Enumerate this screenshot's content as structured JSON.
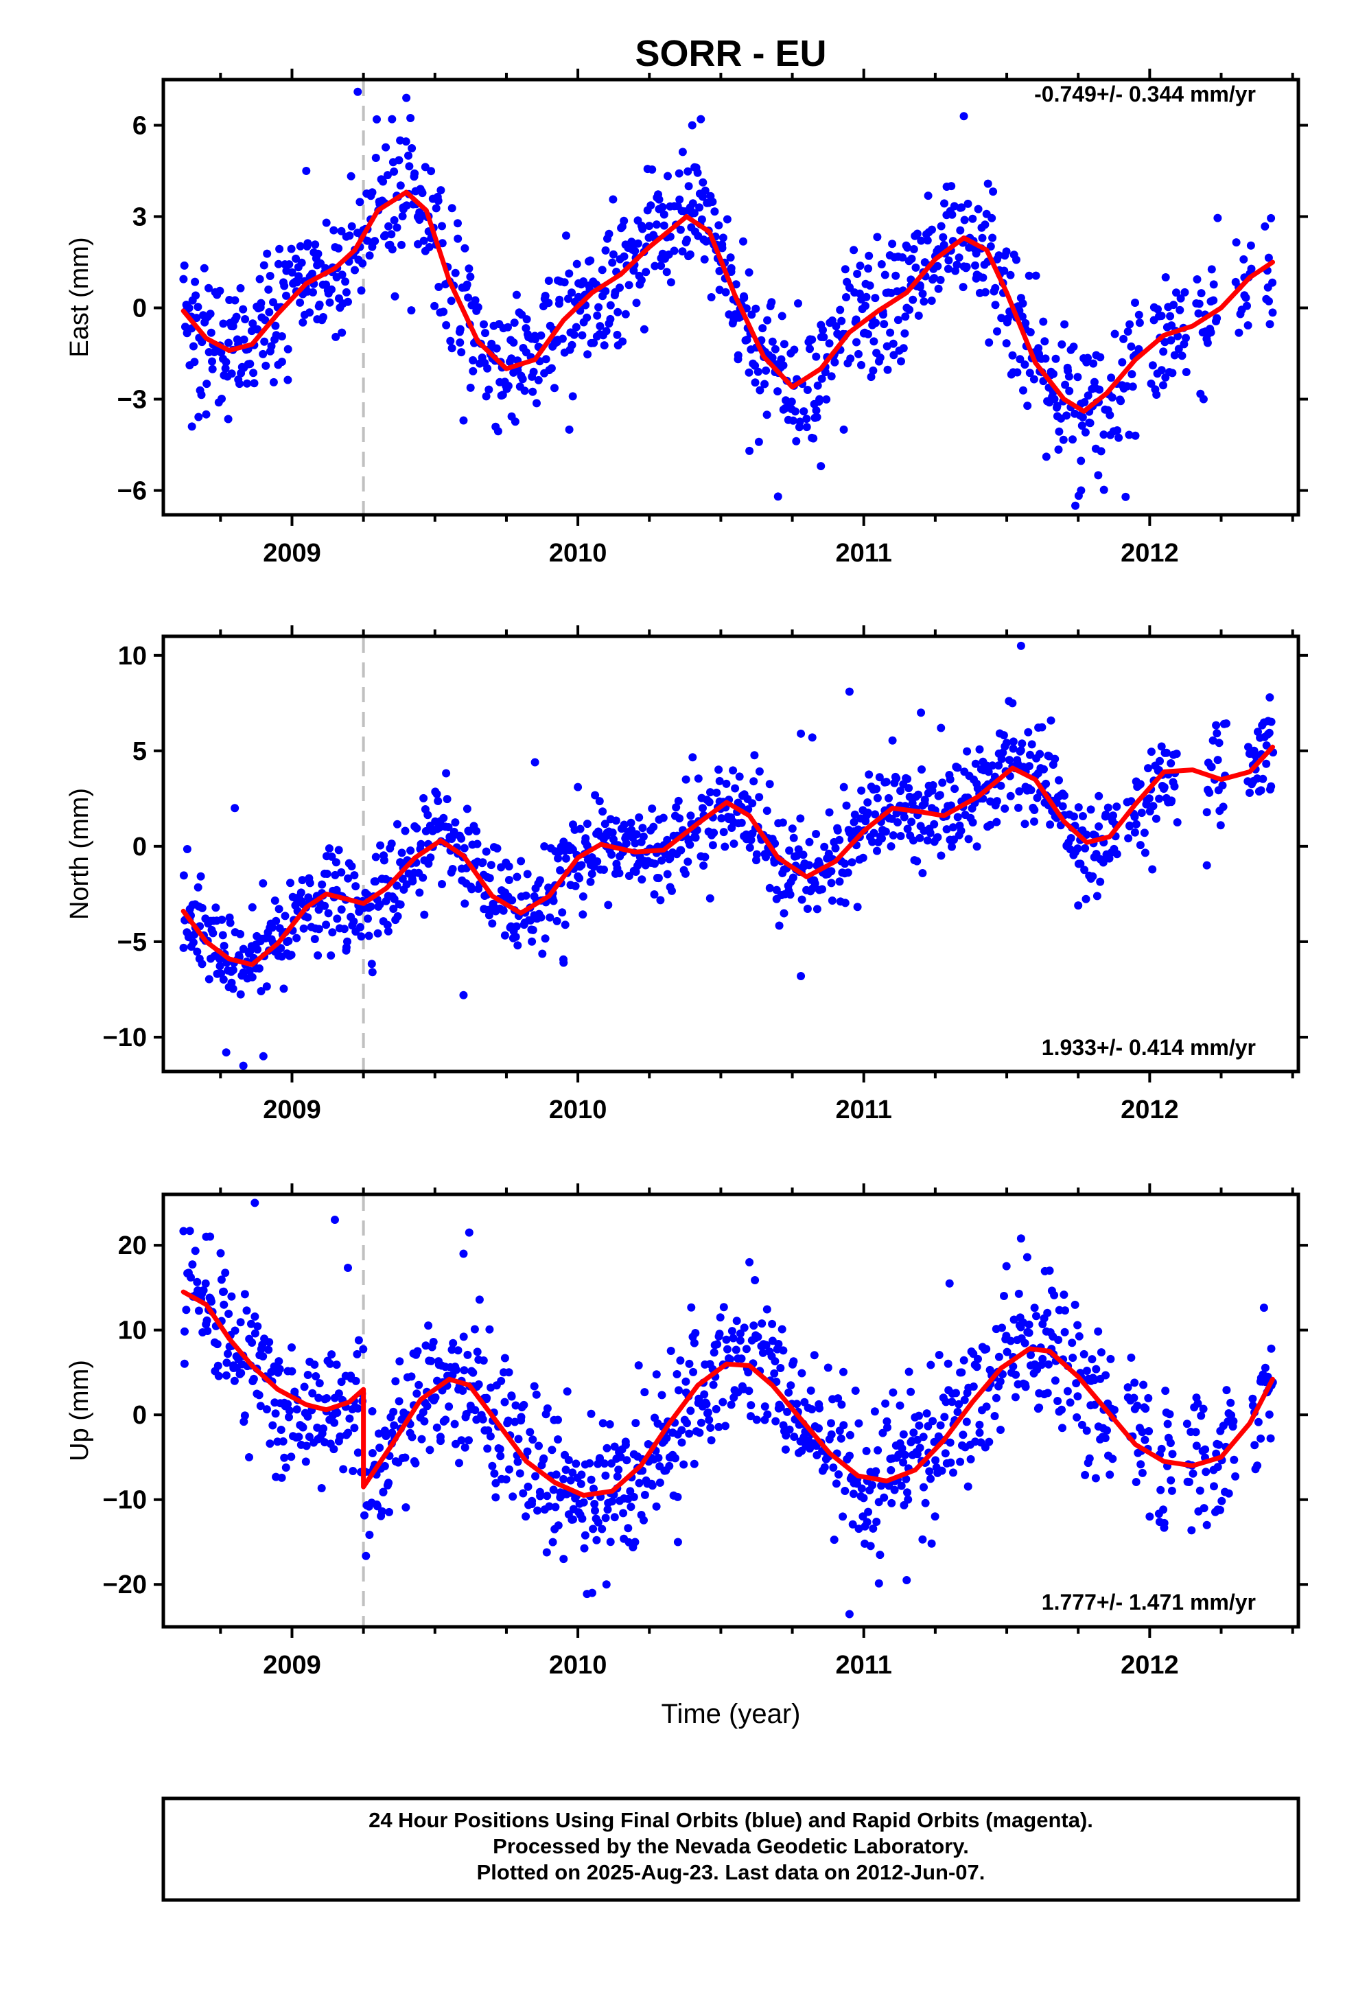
{
  "title": "SORR - EU",
  "xlabel": "Time (year)",
  "footer": {
    "line1": "24 Hour Positions Using Final Orbits (blue) and Rapid Orbits (magenta).",
    "line2": "Processed by the Nevada Geodetic Laboratory.",
    "line3": "Plotted on 2025-Aug-23. Last data on 2012-Jun-07."
  },
  "colors": {
    "points": "#0000ff",
    "fit": "#ff0000",
    "break": "#c0c0c0",
    "frame": "#000000"
  },
  "chart_data": [
    {
      "type": "scatter",
      "name": "east",
      "ylabel": "East (mm)",
      "rate_label": "-0.749+/- 0.344 mm/yr",
      "xlim": [
        2008.55,
        2012.52
      ],
      "ylim": [
        -6.8,
        7.5
      ],
      "yticks": [
        6,
        3,
        0,
        -3,
        -6
      ],
      "yticks_minor": [],
      "xticks": [
        2009,
        2010,
        2011,
        2012
      ],
      "break_line": 2009.25,
      "fit_curve": [
        [
          2008.62,
          -0.1
        ],
        [
          2008.7,
          -1.0
        ],
        [
          2008.78,
          -1.4
        ],
        [
          2008.86,
          -1.2
        ],
        [
          2008.95,
          -0.2
        ],
        [
          2009.05,
          0.8
        ],
        [
          2009.15,
          1.3
        ],
        [
          2009.22,
          1.9
        ],
        [
          2009.3,
          3.2
        ],
        [
          2009.4,
          3.8
        ],
        [
          2009.47,
          3.2
        ],
        [
          2009.55,
          0.9
        ],
        [
          2009.65,
          -1.1
        ],
        [
          2009.75,
          -2.0
        ],
        [
          2009.85,
          -1.7
        ],
        [
          2009.95,
          -0.4
        ],
        [
          2010.05,
          0.5
        ],
        [
          2010.15,
          1.1
        ],
        [
          2010.25,
          2.0
        ],
        [
          2010.38,
          3.0
        ],
        [
          2010.46,
          2.5
        ],
        [
          2010.55,
          0.4
        ],
        [
          2010.65,
          -1.6
        ],
        [
          2010.75,
          -2.6
        ],
        [
          2010.85,
          -2.0
        ],
        [
          2010.95,
          -0.8
        ],
        [
          2011.05,
          -0.1
        ],
        [
          2011.15,
          0.5
        ],
        [
          2011.25,
          1.6
        ],
        [
          2011.35,
          2.3
        ],
        [
          2011.43,
          1.9
        ],
        [
          2011.5,
          0.5
        ],
        [
          2011.6,
          -1.8
        ],
        [
          2011.7,
          -3.0
        ],
        [
          2011.77,
          -3.4
        ],
        [
          2011.85,
          -2.8
        ],
        [
          2011.95,
          -1.7
        ],
        [
          2012.05,
          -0.9
        ],
        [
          2012.15,
          -0.6
        ],
        [
          2012.25,
          0.0
        ],
        [
          2012.35,
          1.0
        ],
        [
          2012.43,
          1.5
        ]
      ],
      "point_spread": 1.1,
      "point_gaps": [
        [
          2008.55,
          2008.62
        ],
        [
          2011.97,
          2012.0
        ],
        [
          2012.13,
          2012.16
        ],
        [
          2012.24,
          2012.3
        ],
        [
          2012.36,
          2012.4
        ]
      ],
      "point_outliers": [
        [
          2009.23,
          7.1
        ],
        [
          2009.4,
          6.9
        ],
        [
          2009.35,
          6.2
        ],
        [
          2010.4,
          6.0
        ],
        [
          2010.43,
          6.2
        ],
        [
          2011.35,
          6.3
        ],
        [
          2009.05,
          4.5
        ],
        [
          2010.7,
          -6.2
        ],
        [
          2010.85,
          -5.2
        ],
        [
          2011.74,
          -6.5
        ],
        [
          2011.76,
          -6.0
        ],
        [
          2010.6,
          -4.7
        ],
        [
          2008.65,
          -3.9
        ],
        [
          2008.7,
          -3.5
        ],
        [
          2009.97,
          -4.0
        ],
        [
          2011.95,
          -4.2
        ],
        [
          2011.82,
          -5.5
        ],
        [
          2010.93,
          -4.0
        ],
        [
          2009.6,
          -3.7
        ]
      ]
    },
    {
      "type": "scatter",
      "name": "north",
      "ylabel": "North (mm)",
      "rate_label": "1.933+/- 0.414 mm/yr",
      "xlim": [
        2008.55,
        2012.52
      ],
      "ylim": [
        -11.8,
        11.0
      ],
      "yticks": [
        10,
        5,
        0,
        -5,
        -10
      ],
      "xticks": [
        2009,
        2010,
        2011,
        2012
      ],
      "break_line": 2009.25,
      "fit_curve": [
        [
          2008.62,
          -3.4
        ],
        [
          2008.7,
          -5.0
        ],
        [
          2008.78,
          -5.9
        ],
        [
          2008.86,
          -6.2
        ],
        [
          2008.95,
          -5.1
        ],
        [
          2009.05,
          -3.2
        ],
        [
          2009.12,
          -2.5
        ],
        [
          2009.2,
          -2.8
        ],
        [
          2009.25,
          -3.0
        ],
        [
          2009.33,
          -2.2
        ],
        [
          2009.43,
          -0.6
        ],
        [
          2009.52,
          0.3
        ],
        [
          2009.6,
          -0.5
        ],
        [
          2009.7,
          -2.6
        ],
        [
          2009.8,
          -3.5
        ],
        [
          2009.9,
          -2.6
        ],
        [
          2010.0,
          -0.6
        ],
        [
          2010.08,
          0.1
        ],
        [
          2010.2,
          -0.3
        ],
        [
          2010.3,
          -0.2
        ],
        [
          2010.42,
          1.2
        ],
        [
          2010.52,
          2.3
        ],
        [
          2010.6,
          1.6
        ],
        [
          2010.7,
          -0.6
        ],
        [
          2010.8,
          -1.6
        ],
        [
          2010.9,
          -0.8
        ],
        [
          2011.0,
          0.8
        ],
        [
          2011.1,
          2.0
        ],
        [
          2011.2,
          1.8
        ],
        [
          2011.28,
          1.6
        ],
        [
          2011.4,
          2.6
        ],
        [
          2011.52,
          4.1
        ],
        [
          2011.6,
          3.5
        ],
        [
          2011.7,
          1.3
        ],
        [
          2011.78,
          0.2
        ],
        [
          2011.86,
          0.5
        ],
        [
          2011.95,
          2.2
        ],
        [
          2012.05,
          3.9
        ],
        [
          2012.15,
          4.0
        ],
        [
          2012.25,
          3.5
        ],
        [
          2012.35,
          3.9
        ],
        [
          2012.43,
          5.2
        ]
      ],
      "point_spread": 1.3,
      "point_gaps": [
        [
          2008.55,
          2008.62
        ],
        [
          2011.89,
          2011.92
        ],
        [
          2012.1,
          2012.2
        ],
        [
          2012.27,
          2012.34
        ]
      ],
      "point_outliers": [
        [
          2008.83,
          -11.5
        ],
        [
          2008.77,
          -10.8
        ],
        [
          2008.9,
          -11.0
        ],
        [
          2008.8,
          2.0
        ],
        [
          2009.85,
          4.4
        ],
        [
          2010.0,
          3.1
        ],
        [
          2010.95,
          8.1
        ],
        [
          2011.55,
          10.5
        ],
        [
          2011.52,
          7.5
        ],
        [
          2011.2,
          7.0
        ],
        [
          2011.27,
          6.2
        ],
        [
          2010.78,
          5.9
        ],
        [
          2010.82,
          5.7
        ],
        [
          2009.6,
          -7.8
        ],
        [
          2010.78,
          -6.8
        ],
        [
          2009.95,
          -6.1
        ],
        [
          2011.75,
          -3.1
        ],
        [
          2012.2,
          -1.0
        ],
        [
          2012.42,
          7.8
        ]
      ]
    },
    {
      "type": "scatter",
      "name": "up",
      "ylabel": "Up (mm)",
      "rate_label": "1.777+/- 1.471 mm/yr",
      "xlim": [
        2008.55,
        2012.52
      ],
      "ylim": [
        -25,
        26
      ],
      "yticks": [
        20,
        10,
        0,
        -10,
        -20
      ],
      "xticks": [
        2009,
        2010,
        2011,
        2012
      ],
      "break_line": 2009.25,
      "fit_curve": [
        [
          2008.62,
          14.5
        ],
        [
          2008.7,
          13.0
        ],
        [
          2008.78,
          9.0
        ],
        [
          2008.86,
          5.8
        ],
        [
          2008.95,
          3.0
        ],
        [
          2009.05,
          1.2
        ],
        [
          2009.12,
          0.6
        ],
        [
          2009.2,
          1.5
        ],
        [
          2009.25,
          3.0
        ],
        [
          2009.25,
          -8.5
        ],
        [
          2009.35,
          -3.5
        ],
        [
          2009.45,
          1.8
        ],
        [
          2009.55,
          4.2
        ],
        [
          2009.62,
          3.5
        ],
        [
          2009.72,
          -1.0
        ],
        [
          2009.82,
          -5.5
        ],
        [
          2009.92,
          -8.0
        ],
        [
          2010.02,
          -9.5
        ],
        [
          2010.12,
          -9.0
        ],
        [
          2010.22,
          -6.0
        ],
        [
          2010.32,
          -1.0
        ],
        [
          2010.42,
          3.5
        ],
        [
          2010.52,
          6.0
        ],
        [
          2010.6,
          5.8
        ],
        [
          2010.68,
          3.5
        ],
        [
          2010.78,
          -0.5
        ],
        [
          2010.88,
          -4.5
        ],
        [
          2010.98,
          -7.2
        ],
        [
          2011.08,
          -7.8
        ],
        [
          2011.18,
          -6.5
        ],
        [
          2011.28,
          -3.0
        ],
        [
          2011.38,
          1.5
        ],
        [
          2011.48,
          5.5
        ],
        [
          2011.58,
          7.8
        ],
        [
          2011.65,
          7.5
        ],
        [
          2011.75,
          4.5
        ],
        [
          2011.85,
          0.5
        ],
        [
          2011.95,
          -3.5
        ],
        [
          2012.05,
          -5.5
        ],
        [
          2012.15,
          -6.0
        ],
        [
          2012.25,
          -5.0
        ],
        [
          2012.35,
          -1.0
        ],
        [
          2012.43,
          4.2
        ]
      ],
      "point_spread": 4.2,
      "point_gaps": [
        [
          2008.55,
          2008.62
        ],
        [
          2011.88,
          2011.92
        ],
        [
          2012.0,
          2012.03
        ],
        [
          2012.08,
          2012.13
        ],
        [
          2012.2,
          2012.22
        ],
        [
          2012.3,
          2012.36
        ]
      ],
      "point_outliers": [
        [
          2008.87,
          25.0
        ],
        [
          2009.15,
          23.0
        ],
        [
          2009.62,
          21.5
        ],
        [
          2009.6,
          19.0
        ],
        [
          2011.55,
          20.8
        ],
        [
          2008.7,
          21.0
        ],
        [
          2010.6,
          18.0
        ],
        [
          2010.95,
          -23.5
        ],
        [
          2010.05,
          -21.0
        ],
        [
          2010.1,
          -20.0
        ],
        [
          2009.95,
          -17.0
        ],
        [
          2011.15,
          -19.5
        ],
        [
          2010.35,
          -15.0
        ],
        [
          2011.3,
          15.5
        ],
        [
          2011.65,
          17.0
        ],
        [
          2012.0,
          -12.0
        ],
        [
          2012.2,
          -13.0
        ],
        [
          2008.85,
          -5.0
        ],
        [
          2010.2,
          -15.0
        ]
      ]
    }
  ]
}
